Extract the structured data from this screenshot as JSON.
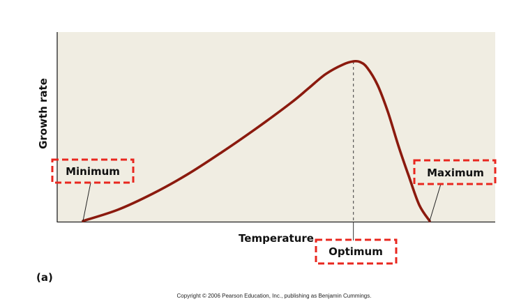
{
  "chart_data": {
    "type": "line",
    "ylabel": "Growth rate",
    "xlabel": "Temperature",
    "panel_label": "(a)",
    "grid": false,
    "legend": "none",
    "series": [
      {
        "x": [
          0.0,
          0.1,
          0.2,
          0.3,
          0.4,
          0.5,
          0.6,
          0.65,
          0.7,
          0.75,
          0.78,
          0.8,
          0.82,
          0.85,
          0.88,
          0.91,
          0.94,
          0.97,
          1.0
        ],
        "y": [
          0.0,
          0.07,
          0.17,
          0.29,
          0.43,
          0.58,
          0.74,
          0.83,
          0.92,
          0.98,
          1.0,
          0.995,
          0.96,
          0.85,
          0.68,
          0.47,
          0.28,
          0.1,
          0.0
        ]
      }
    ],
    "annotations": {
      "minimum": "Minimum",
      "optimum": "Optimum",
      "maximum": "Maximum"
    },
    "colors": {
      "curve": "#8b1a0e",
      "plot_background": "#f0ede2",
      "callout_border": "#e8271f"
    }
  },
  "footer": {
    "copyright": "Copyright © 2006 Pearson Education, Inc., publishing as Benjamin Cummings."
  }
}
